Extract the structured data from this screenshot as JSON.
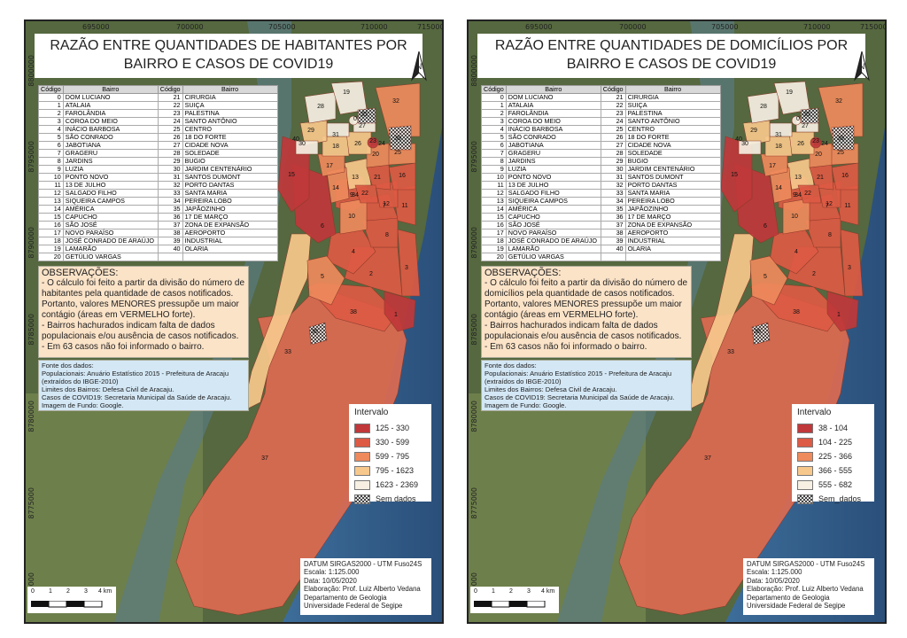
{
  "maps": [
    {
      "title_line1": "RAZÃO ENTRE QUANTIDADES DE HABITANTES POR",
      "title_line2": "BAIRRO E CASOS DE COVID19",
      "observations": {
        "heading": "OBSERVAÇÕES:",
        "lines": [
          "- O cálculo foi feito a partir da divisão do número de",
          "habitantes pela quantidade de casos notificados.",
          "Portanto, valores MENORES pressupõe um maior",
          "contágio (áreas em VERMELHO forte).",
          "- Bairros hachurados indicam falta de dados",
          "populacionais e/ou ausência de casos notificados.",
          "- Em 63 casos não foi informado o bairro."
        ]
      },
      "legend": {
        "title": "Intervalo",
        "items": [
          {
            "label": "125 - 330",
            "color": "#c0383a"
          },
          {
            "label": "330 - 599",
            "color": "#dd5a44"
          },
          {
            "label": "599 - 795",
            "color": "#ee8a5c"
          },
          {
            "label": "795 - 1623",
            "color": "#f7c88c"
          },
          {
            "label": "1623 - 2369",
            "color": "#f6efe2"
          },
          {
            "label": "Sem dados",
            "color": "hatch"
          }
        ]
      }
    },
    {
      "title_line1": "RAZÃO ENTRE QUANTIDADES DE DOMICÍLIOS POR",
      "title_line2": "BAIRRO E CASOS DE COVID19",
      "observations": {
        "heading": "OBSERVAÇÕES:",
        "lines": [
          "- O cálculo foi feito a partir da divisão do número de",
          "domicílios pela quantidade de casos notificados.",
          "Portanto, valores MENORES pressupõe um maior",
          "contágio (áreas em VERMELHO forte).",
          "- Bairros hachurados indicam falta de dados",
          "populacionais e/ou ausência de casos notificados.",
          "- Em 63 casos não foi informado o bairro."
        ]
      },
      "legend": {
        "title": "Intervalo",
        "items": [
          {
            "label": "38 - 104",
            "color": "#c0383a"
          },
          {
            "label": "104 - 225",
            "color": "#dd5a44"
          },
          {
            "label": "225 - 366",
            "color": "#ee8a5c"
          },
          {
            "label": "366 - 555",
            "color": "#f7c88c"
          },
          {
            "label": "555 - 682",
            "color": "#f6efe2"
          },
          {
            "label": "Sem_dados",
            "color": "hatch"
          }
        ]
      }
    }
  ],
  "grid": {
    "top": [
      "695000",
      "700000",
      "705000",
      "710000",
      "715000"
    ],
    "side": [
      "8800000",
      "8795000",
      "8790000",
      "8785000",
      "8780000",
      "8775000",
      "8770000"
    ]
  },
  "table": {
    "headers": [
      "Código",
      "Bairro",
      "Código",
      "Bairro"
    ],
    "rows": [
      [
        "0",
        "DOM LUCIANO",
        "21",
        "CIRURGIA"
      ],
      [
        "1",
        "ATALAIA",
        "22",
        "SUIÇA"
      ],
      [
        "2",
        "FAROLÂNDIA",
        "23",
        "PALESTINA"
      ],
      [
        "3",
        "COROA DO MEIO",
        "24",
        "SANTO ANTÔNIO"
      ],
      [
        "4",
        "INÁCIO BARBOSA",
        "25",
        "CENTRO"
      ],
      [
        "5",
        "SÃO CONRADO",
        "26",
        "18 DO FORTE"
      ],
      [
        "6",
        "JABOTIANA",
        "27",
        "CIDADE NOVA"
      ],
      [
        "7",
        "GRAGERU",
        "28",
        "SOLEDADE"
      ],
      [
        "8",
        "JARDINS",
        "29",
        "BUGIO"
      ],
      [
        "9",
        "LUZIA",
        "30",
        "JARDIM CENTENÁRIO"
      ],
      [
        "10",
        "PONTO NOVO",
        "31",
        "SANTOS DUMONT"
      ],
      [
        "11",
        "13 DE JULHO",
        "32",
        "PORTO DANTAS"
      ],
      [
        "12",
        "SALGADO FILHO",
        "33",
        "SANTA MARIA"
      ],
      [
        "13",
        "SIQUEIRA CAMPOS",
        "34",
        "PEREIRA LOBO"
      ],
      [
        "14",
        "AMÉRICA",
        "35",
        "JAPÃOZINHO"
      ],
      [
        "15",
        "CAPUCHO",
        "36",
        "17 DE MARÇO"
      ],
      [
        "16",
        "SÃO JOSÉ",
        "37",
        "ZONA DE EXPANSÃO"
      ],
      [
        "17",
        "NOVO PARAÍSO",
        "38",
        "AEROPORTO"
      ],
      [
        "18",
        "JOSÉ CONRADO DE ARAÚJO",
        "39",
        "INDUSTRIAL"
      ],
      [
        "19",
        "LAMARÃO",
        "40",
        "OLARIA"
      ],
      [
        "20",
        "GETÚLIO VARGAS",
        "",
        ""
      ]
    ]
  },
  "sources": [
    "Fonte dos dados:",
    "Populacionais: Anuário Estatístico 2015 - Prefeitura de Aracaju",
    "(extraídos do IBGE-2010)",
    "Limites dos Bairros: Defesa Civil de Aracaju.",
    "Casos de COVID19: Secretaria Municipal da Saúde de Aracaju.",
    "Imagem de Fundo: Google."
  ],
  "datum": [
    "DATUM SIRGAS2000 - UTM Fuso24S",
    "Escala: 1:125.000",
    "Data: 10/05/2020",
    "Elaboração: Prof. Luiz Alberto Vedana",
    "Departamento de Geologia",
    "Universidade Federal de Segipe"
  ],
  "scale_labels": [
    "0",
    "1",
    "2",
    "3",
    "4 km"
  ],
  "north_label": "N",
  "neighborhood_labels": [
    "37",
    "38",
    "33",
    "36",
    "1",
    "2",
    "3",
    "4",
    "5",
    "6",
    "7",
    "8",
    "9",
    "10",
    "11",
    "12",
    "13",
    "14",
    "15",
    "16",
    "17",
    "18",
    "19",
    "20",
    "21",
    "22",
    "25",
    "26",
    "27",
    "28",
    "29",
    "30",
    "31",
    "32",
    "34",
    "35",
    "39",
    "40",
    "0",
    "23",
    "24"
  ],
  "colors": {
    "dark_red": "#c0383a",
    "red": "#dd5a44",
    "orange": "#ee8a5c",
    "peach": "#f7c88c",
    "cream": "#f6efe2",
    "zone37": "#dd6b52"
  }
}
